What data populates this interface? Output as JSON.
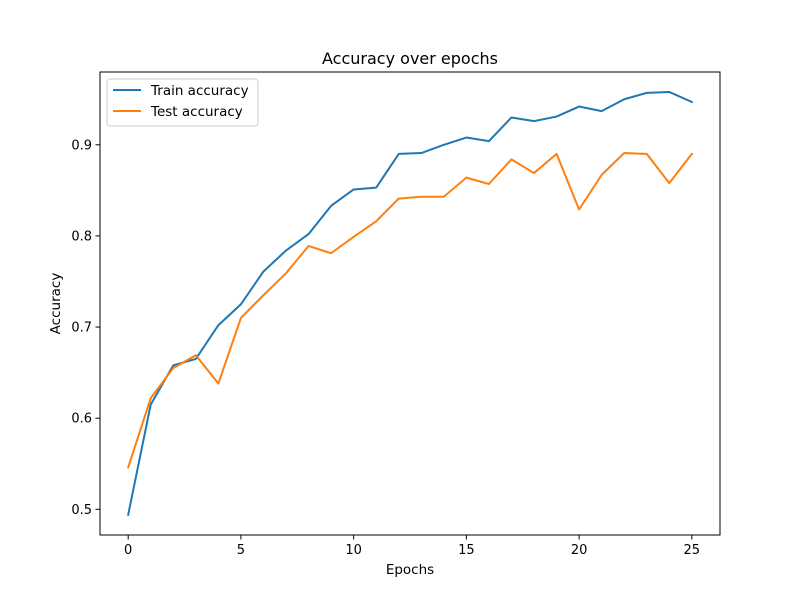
{
  "chart_data": {
    "type": "line",
    "title": "Accuracy over epochs",
    "xlabel": "Epochs",
    "ylabel": "Accuracy",
    "xlim": [
      -1.25,
      26.25
    ],
    "ylim": [
      0.4718,
      0.9799
    ],
    "xticks": [
      0,
      5,
      10,
      15,
      20,
      25
    ],
    "yticks": [
      0.5,
      0.6,
      0.7,
      0.8,
      0.9
    ],
    "xtick_labels": [
      "0",
      "5",
      "10",
      "15",
      "20",
      "25"
    ],
    "ytick_labels": [
      "0.5",
      "0.6",
      "0.7",
      "0.8",
      "0.9"
    ],
    "grid": false,
    "legend_position": "top-left",
    "x": [
      0,
      1,
      2,
      3,
      4,
      5,
      6,
      7,
      8,
      9,
      10,
      11,
      12,
      13,
      14,
      15,
      16,
      17,
      18,
      19,
      20,
      21,
      22,
      23,
      24,
      25
    ],
    "series": [
      {
        "name": "Train accuracy",
        "color": "#1f77b4",
        "values": [
          0.494,
          0.615,
          0.658,
          0.665,
          0.702,
          0.725,
          0.761,
          0.784,
          0.802,
          0.833,
          0.851,
          0.853,
          0.89,
          0.891,
          0.9,
          0.908,
          0.904,
          0.93,
          0.926,
          0.931,
          0.942,
          0.937,
          0.95,
          0.957,
          0.958,
          0.947
        ]
      },
      {
        "name": "Test accuracy",
        "color": "#ff7f0e",
        "values": [
          0.546,
          0.622,
          0.655,
          0.669,
          0.638,
          0.71,
          0.735,
          0.759,
          0.789,
          0.781,
          0.799,
          0.816,
          0.841,
          0.843,
          0.843,
          0.864,
          0.857,
          0.884,
          0.869,
          0.89,
          0.829,
          0.867,
          0.891,
          0.89,
          0.858,
          0.89
        ]
      }
    ]
  }
}
